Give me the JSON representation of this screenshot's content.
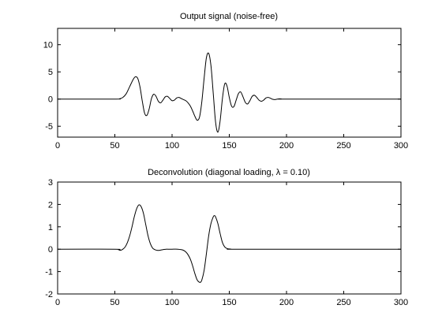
{
  "chart_data": [
    {
      "type": "line",
      "title": "Output signal (noise-free)",
      "xlabel": "",
      "ylabel": "",
      "xlim": [
        0,
        300
      ],
      "ylim": [
        -7,
        13
      ],
      "grid": false,
      "xticks": [
        0,
        50,
        100,
        150,
        200,
        250,
        300
      ],
      "yticks": [
        -5,
        0,
        5,
        10
      ],
      "series": [
        {
          "color": "#000000",
          "x": [
            0,
            50,
            54,
            57,
            60,
            63,
            66,
            68,
            70,
            72,
            74,
            76,
            78,
            80,
            82,
            84,
            86,
            88,
            90,
            92,
            94,
            96,
            98,
            100,
            102,
            104,
            106,
            108,
            110,
            112,
            114,
            116,
            118,
            120,
            122,
            124,
            126,
            128,
            130,
            132,
            134,
            136,
            138,
            140,
            142,
            144,
            146,
            148,
            150,
            152,
            154,
            156,
            158,
            160,
            162,
            164,
            166,
            168,
            170,
            172,
            174,
            176,
            178,
            180,
            182,
            184,
            186,
            188,
            190,
            192,
            194,
            196,
            198,
            200,
            300
          ],
          "y": [
            0,
            0,
            0.05,
            0.3,
            1.0,
            2.3,
            3.6,
            4.1,
            3.8,
            2.2,
            -0.4,
            -2.6,
            -3.0,
            -1.8,
            0.1,
            0.9,
            0.5,
            -0.4,
            -0.7,
            -0.2,
            0.4,
            0.5,
            0.1,
            -0.3,
            -0.2,
            0.2,
            0.3,
            0.1,
            -0.1,
            -0.3,
            -0.7,
            -1.3,
            -2.2,
            -3.2,
            -3.9,
            -3.3,
            -0.5,
            3.8,
            7.6,
            8.4,
            6.1,
            1.0,
            -4.2,
            -6.1,
            -4.0,
            0.1,
            2.8,
            2.4,
            0.3,
            -1.3,
            -1.4,
            -0.2,
            1.0,
            1.3,
            0.4,
            -0.6,
            -0.9,
            -0.3,
            0.5,
            0.7,
            0.3,
            -0.2,
            -0.4,
            -0.2,
            0.2,
            0.3,
            0.15,
            -0.05,
            -0.1,
            0,
            0.05,
            0,
            0,
            0,
            0
          ]
        }
      ]
    },
    {
      "type": "line",
      "title": "Deconvolution (diagonal loading, λ = 0.10)",
      "xlabel": "",
      "ylabel": "",
      "xlim": [
        0,
        300
      ],
      "ylim": [
        -2,
        3
      ],
      "grid": false,
      "xticks": [
        0,
        50,
        100,
        150,
        200,
        250,
        300
      ],
      "yticks": [
        -2,
        -1,
        0,
        1,
        2,
        3
      ],
      "series": [
        {
          "color": "#000000",
          "x": [
            0,
            50,
            53,
            55,
            57,
            59,
            61,
            63,
            65,
            67,
            69,
            71,
            73,
            75,
            77,
            79,
            81,
            83,
            85,
            87,
            89,
            91,
            93,
            95,
            97,
            100,
            105,
            108,
            110,
            112,
            114,
            116,
            118,
            120,
            122,
            124,
            125,
            126,
            128,
            130,
            132,
            134,
            136,
            137,
            138,
            140,
            142,
            144,
            146,
            148,
            150,
            152,
            155,
            160,
            300
          ],
          "y": [
            0,
            0,
            -0.02,
            -0.05,
            0.0,
            0.1,
            0.3,
            0.6,
            1.0,
            1.45,
            1.8,
            1.98,
            1.9,
            1.6,
            1.1,
            0.6,
            0.25,
            0.05,
            -0.02,
            -0.05,
            -0.05,
            -0.03,
            -0.01,
            0,
            0,
            0,
            0,
            -0.02,
            -0.05,
            -0.12,
            -0.25,
            -0.45,
            -0.75,
            -1.1,
            -1.38,
            -1.48,
            -1.47,
            -1.38,
            -0.95,
            -0.2,
            0.6,
            1.15,
            1.45,
            1.5,
            1.45,
            1.15,
            0.7,
            0.3,
            0.1,
            0.03,
            0.01,
            0,
            0,
            0,
            0
          ]
        }
      ]
    }
  ]
}
